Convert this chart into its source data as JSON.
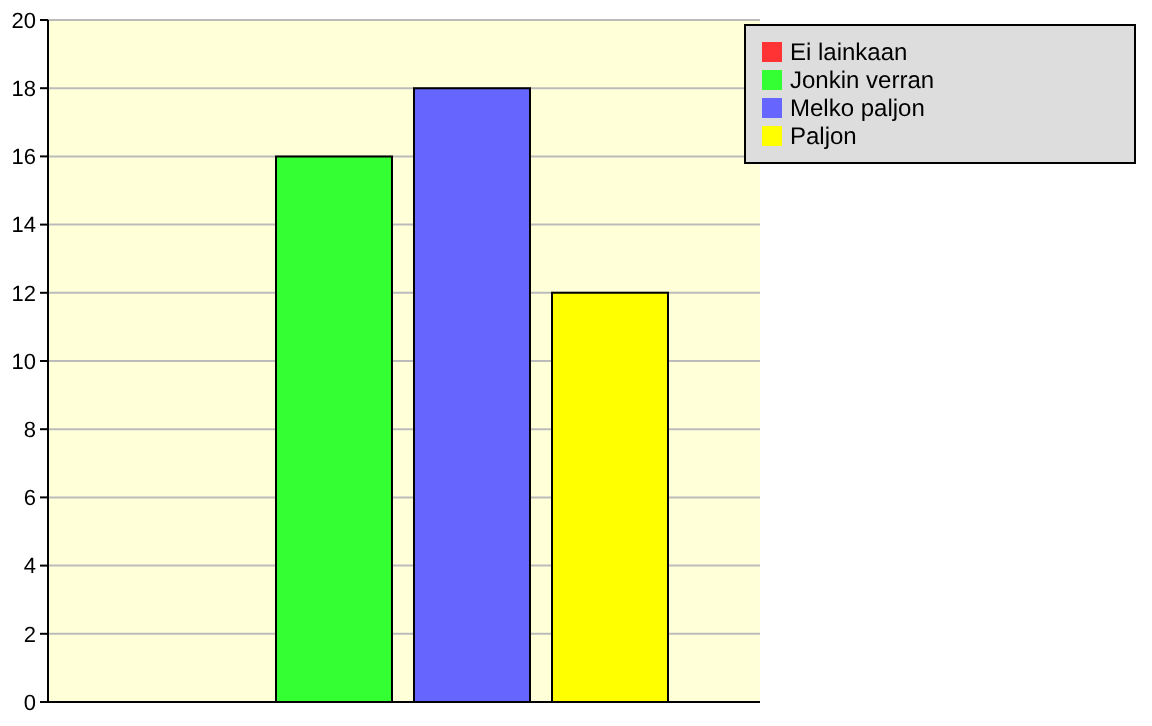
{
  "chart_data": {
    "type": "bar",
    "categories": [
      null
    ],
    "series": [
      {
        "name": "Ei lainkaan",
        "color": "#ff3333",
        "values": [
          0
        ]
      },
      {
        "name": "Jonkin verran",
        "color": "#33ff33",
        "values": [
          16
        ]
      },
      {
        "name": "Melko paljon",
        "color": "#6666ff",
        "values": [
          18
        ]
      },
      {
        "name": "Paljon",
        "color": "#ffff00",
        "values": [
          12
        ]
      }
    ],
    "ylim": [
      0,
      20
    ],
    "yticks": [
      0,
      2,
      4,
      6,
      8,
      10,
      12,
      14,
      16,
      18,
      20
    ],
    "grid": "y",
    "legend": "top right"
  }
}
